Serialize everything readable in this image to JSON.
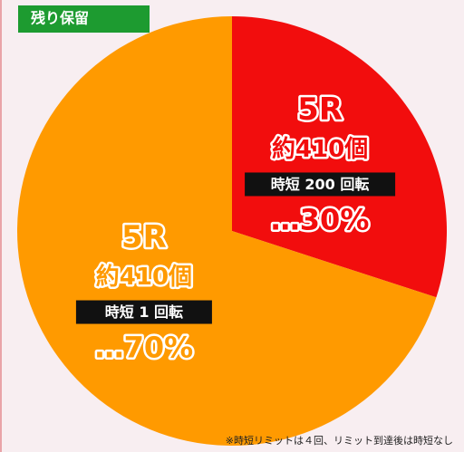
{
  "chart_data": {
    "type": "pie",
    "title": "残り保留",
    "categories": [
      "30%",
      "70%"
    ],
    "values": [
      30,
      70
    ],
    "value_labels": [
      "…30%",
      "…70%"
    ],
    "colors": [
      "#f20d0d",
      "#ff9a00"
    ],
    "round_labels": [
      "5R",
      "5R"
    ],
    "payout_labels": [
      "約410個",
      "約410個"
    ],
    "time_labels": [
      "時短 200 回転",
      "時短 1 回転"
    ],
    "note": "※時短リミットは４回、リミット到達後は時短なし"
  }
}
